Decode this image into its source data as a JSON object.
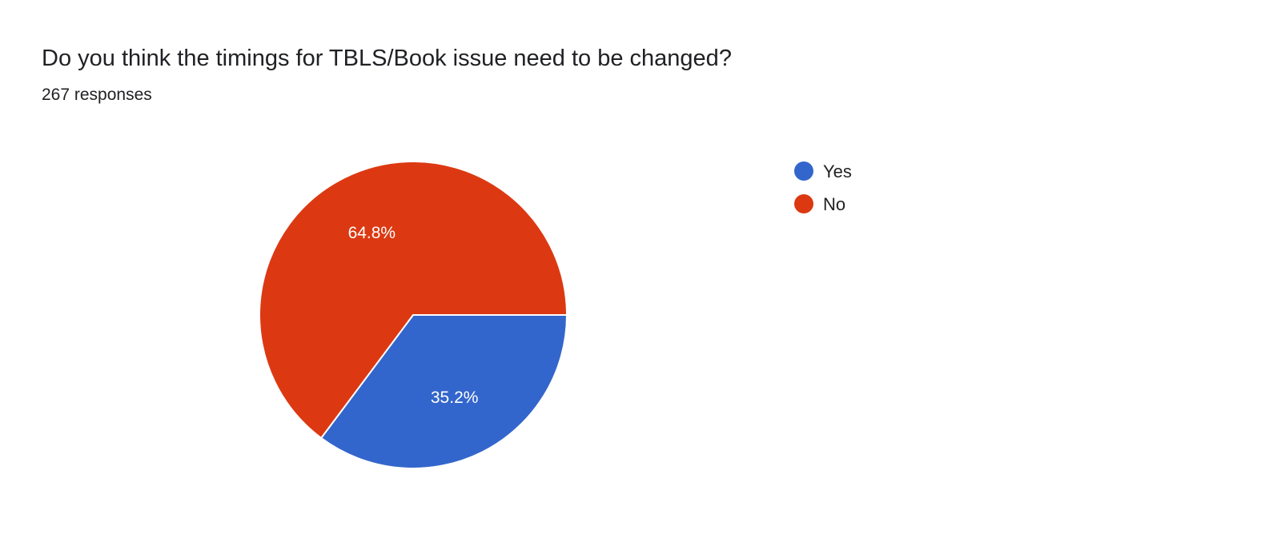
{
  "title": "Do you think the timings for TBLS/Book issue need to be changed?",
  "subtitle": "267 responses",
  "chart_data": {
    "type": "pie",
    "title": "Do you think the timings for TBLS/Book issue need to be changed?",
    "subtitle": "267 responses",
    "categories": [
      "Yes",
      "No"
    ],
    "values": [
      35.2,
      64.8
    ],
    "labels": [
      "35.2%",
      "64.8%"
    ],
    "colors": [
      "#3366cc",
      "#dc3912"
    ],
    "legend": "right"
  }
}
